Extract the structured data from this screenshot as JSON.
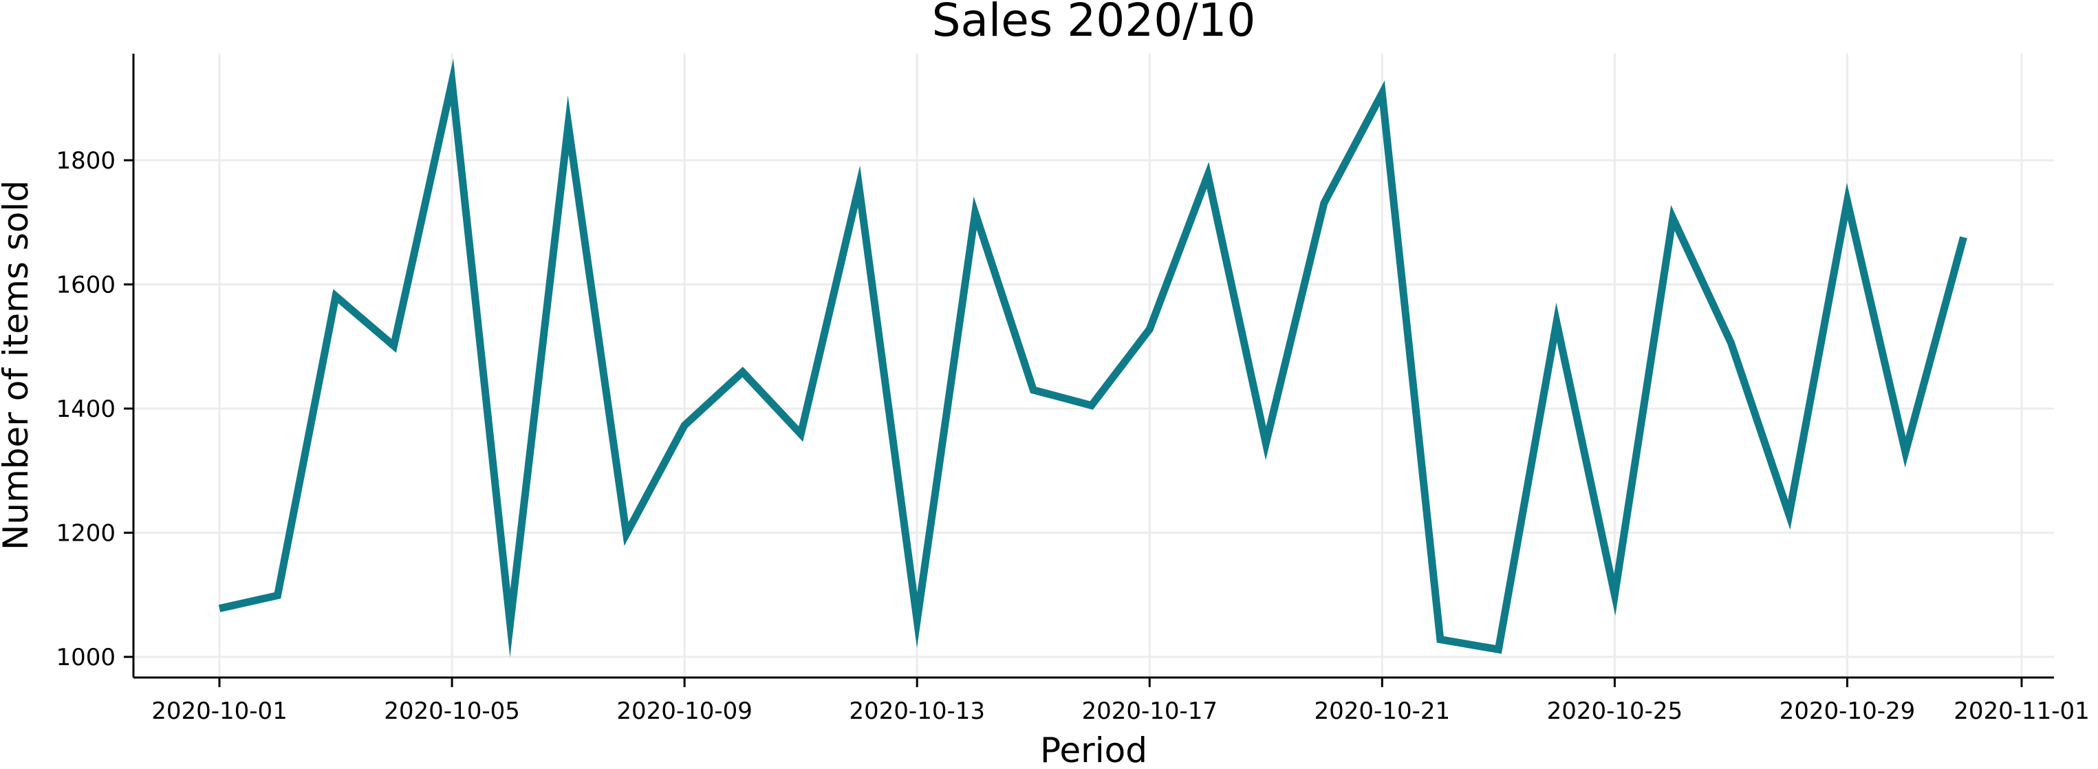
{
  "chart_data": {
    "type": "line",
    "title": "Sales 2020/10",
    "xlabel": "Period",
    "ylabel": "Number of items sold",
    "xlim": [
      "2020-09-27",
      "2020-11-01"
    ],
    "ylim": [
      963,
      1980
    ],
    "x_ticks": [
      "2020-10-01",
      "2020-10-05",
      "2020-10-09",
      "2020-10-13",
      "2020-10-17",
      "2020-10-21",
      "2020-10-25",
      "2020-10-29",
      "2020-11-01"
    ],
    "y_ticks": [
      1000,
      1200,
      1400,
      1600,
      1800
    ],
    "grid": true,
    "line_color": "#0f7b89",
    "series": [
      {
        "x": [
          "2020-10-01",
          "2020-10-02",
          "2020-10-03",
          "2020-10-04",
          "2020-10-05",
          "2020-10-06",
          "2020-10-07",
          "2020-10-08",
          "2020-10-09",
          "2020-10-10",
          "2020-10-11",
          "2020-10-12",
          "2020-10-13",
          "2020-10-14",
          "2020-10-15",
          "2020-10-16",
          "2020-10-17",
          "2020-10-18",
          "2020-10-19",
          "2020-10-20",
          "2020-10-21",
          "2020-10-22",
          "2020-10-23",
          "2020-10-24",
          "2020-10-25",
          "2020-10-26",
          "2020-10-27",
          "2020-10-28",
          "2020-10-29",
          "2020-10-30",
          "2020-10-31"
        ],
        "values": [
          1078,
          1099,
          1581,
          1501,
          1926,
          1054,
          1857,
          1198,
          1373,
          1459,
          1359,
          1758,
          1059,
          1715,
          1430,
          1405,
          1528,
          1776,
          1344,
          1731,
          1908,
          1028,
          1012,
          1539,
          1100,
          1707,
          1506,
          1229,
          1734,
          1330,
          1676
        ]
      }
    ]
  }
}
